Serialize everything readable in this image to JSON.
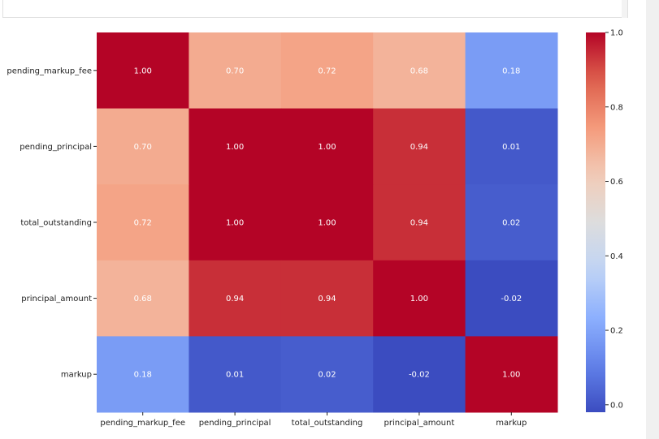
{
  "chart_data": {
    "type": "heatmap",
    "title": "",
    "rows": [
      "pending_markup_fee",
      "pending_principal",
      "total_outstanding",
      "principal_amount",
      "markup"
    ],
    "columns": [
      "pending_markup_fee",
      "pending_principal",
      "total_outstanding",
      "principal_amount",
      "markup"
    ],
    "values": [
      [
        1.0,
        0.7,
        0.72,
        0.68,
        0.18
      ],
      [
        0.7,
        1.0,
        1.0,
        0.94,
        0.01
      ],
      [
        0.72,
        1.0,
        1.0,
        0.94,
        0.02
      ],
      [
        0.68,
        0.94,
        0.94,
        1.0,
        -0.02
      ],
      [
        0.18,
        0.01,
        0.02,
        -0.02,
        1.0
      ]
    ],
    "annotation_format": "0.00",
    "colormap": "coolwarm",
    "color_range": [
      -0.02,
      1.0
    ],
    "colorbar": {
      "ticks": [
        0.0,
        0.2,
        0.4,
        0.6,
        0.8,
        1.0
      ],
      "tick_labels": [
        "0.0",
        "0.2",
        "0.4",
        "0.6",
        "0.8",
        "1.0"
      ],
      "placement": "right"
    },
    "annotation_color": "#ffffff"
  }
}
